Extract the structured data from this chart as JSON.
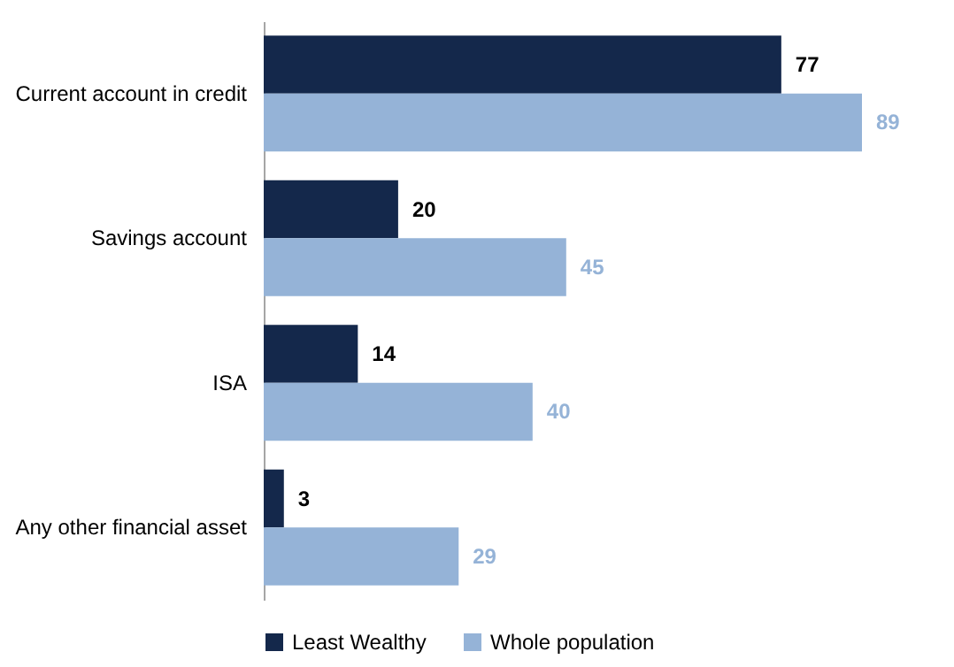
{
  "chart_data": {
    "type": "bar",
    "orientation": "horizontal",
    "categories": [
      "Current account in credit",
      "Savings account",
      "ISA",
      "Any other financial asset"
    ],
    "series": [
      {
        "name": "Least Wealthy",
        "color": "#14284b",
        "values": [
          77,
          20,
          14,
          3
        ]
      },
      {
        "name": "Whole population",
        "color": "#95b3d7",
        "values": [
          89,
          45,
          40,
          29
        ]
      }
    ],
    "data_labels": true,
    "legend": "bottom"
  }
}
